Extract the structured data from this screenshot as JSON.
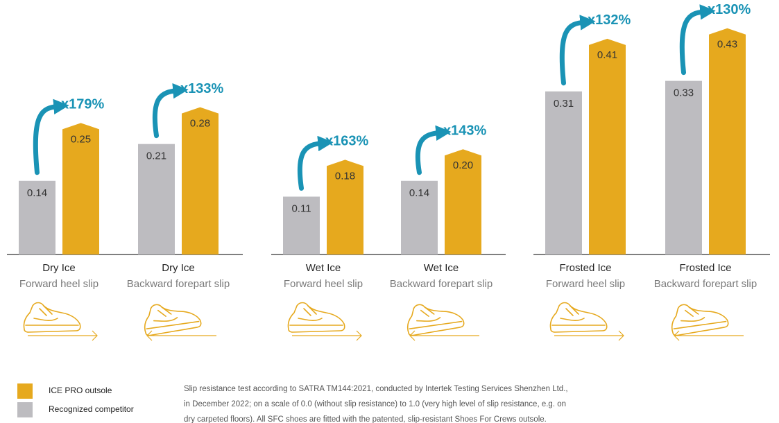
{
  "chart_data": {
    "type": "bar",
    "groups": [
      {
        "name": "Dry Ice",
        "test": "Forward heel slip"
      },
      {
        "name": "Dry Ice",
        "test": "Backward forepart slip"
      },
      {
        "name": "Wet Ice",
        "test": "Forward heel slip"
      },
      {
        "name": "Wet Ice",
        "test": "Backward forepart slip"
      },
      {
        "name": "Frosted Ice",
        "test": "Forward heel slip"
      },
      {
        "name": "Frosted Ice",
        "test": "Backward forepart slip"
      }
    ],
    "series": [
      {
        "name": "ICE PRO outsole",
        "color": "#e6a91e",
        "values": [
          0.25,
          0.28,
          0.18,
          0.2,
          0.41,
          0.43
        ],
        "value_labels": [
          "0.25",
          "0.28",
          "0.18",
          "0.20",
          "0.41",
          "0.43"
        ]
      },
      {
        "name": "Recognized competitor",
        "color": "#bdbcc0",
        "values": [
          0.14,
          0.21,
          0.11,
          0.14,
          0.31,
          0.33
        ],
        "value_labels": [
          "0.14",
          "0.21",
          "0.11",
          "0.14",
          "0.31",
          "0.33"
        ]
      }
    ],
    "annotations": [
      "x179%",
      "x133%",
      "x163%",
      "x143%",
      "x132%",
      "x130%"
    ],
    "ylim": [
      0,
      0.46
    ],
    "footnote": [
      "Slip resistance test according to SATRA TM144:2021, conducted by Intertek Testing Services Shenzhen Ltd.,",
      "in December 2022; on a scale of 0.0 (without slip resistance) to 1.0 (very high level of slip resistance, e.g. on",
      "dry carpeted floors). All SFC shoes are fitted with the patented, slip-resistant Shoes For Crews outsole."
    ]
  }
}
